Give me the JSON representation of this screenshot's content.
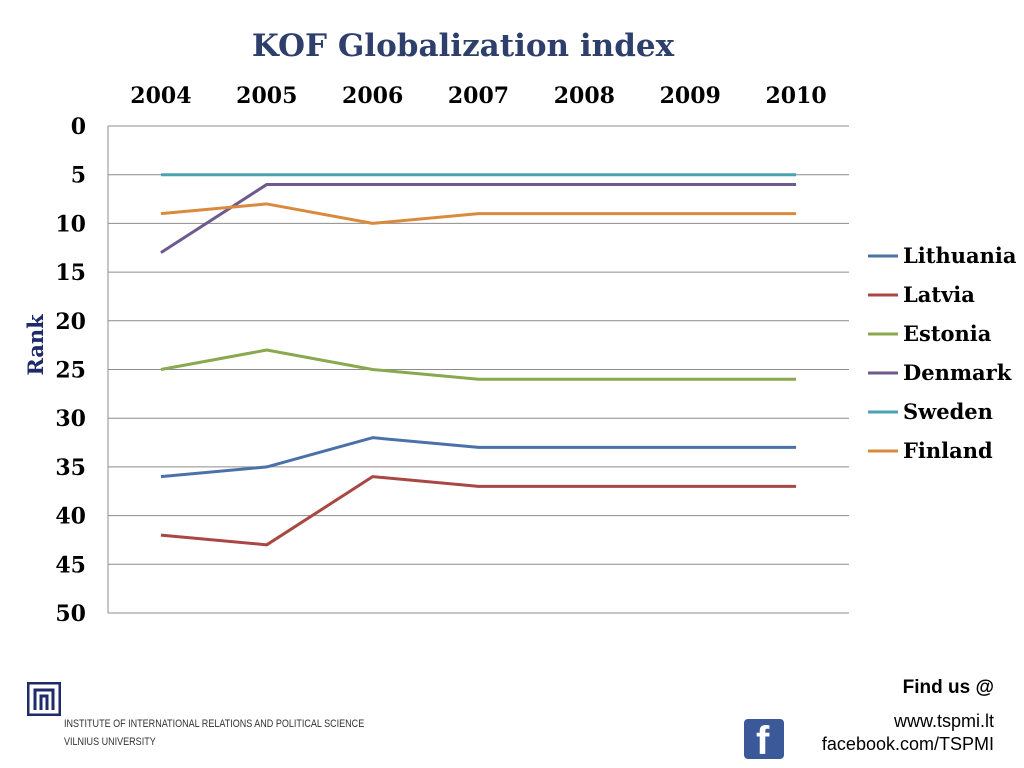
{
  "chart_data": {
    "type": "line",
    "title": "KOF Globalization index",
    "xlabel": "",
    "ylabel": "Rank",
    "x": [
      "2004",
      "2005",
      "2006",
      "2007",
      "2008",
      "2009",
      "2010"
    ],
    "ylim": [
      0,
      50
    ],
    "y_inverted": true,
    "y_ticks": [
      0,
      5,
      10,
      15,
      20,
      25,
      30,
      35,
      40,
      45,
      50
    ],
    "grid": "horizontal",
    "legend_position": "right",
    "series": [
      {
        "name": "Lithuania",
        "color": "#4a72a8",
        "values": [
          36,
          35,
          32,
          33,
          33,
          33,
          33
        ]
      },
      {
        "name": "Latvia",
        "color": "#a84744",
        "values": [
          42,
          43,
          36,
          37,
          37,
          37,
          37
        ]
      },
      {
        "name": "Estonia",
        "color": "#8aa84f",
        "values": [
          25,
          23,
          25,
          26,
          26,
          26,
          26
        ]
      },
      {
        "name": "Denmark",
        "color": "#6e5a8e",
        "values": [
          13,
          6,
          6,
          6,
          6,
          6,
          6
        ]
      },
      {
        "name": "Sweden",
        "color": "#4aa2b2",
        "values": [
          5,
          5,
          5,
          5,
          5,
          5,
          5
        ]
      },
      {
        "name": "Finland",
        "color": "#d98a3d",
        "values": [
          9,
          8,
          10,
          9,
          9,
          9,
          9
        ]
      }
    ]
  },
  "footer": {
    "find_us": "Find us @",
    "website": "www.tspmi.lt",
    "facebook": "facebook.com/TSPMI",
    "facebook_icon": "facebook-icon",
    "institute_line1": "INSTITUTE OF INTERNATIONAL RELATIONS AND POLITICAL SCIENCE",
    "institute_line2": "VILNIUS UNIVERSITY"
  }
}
